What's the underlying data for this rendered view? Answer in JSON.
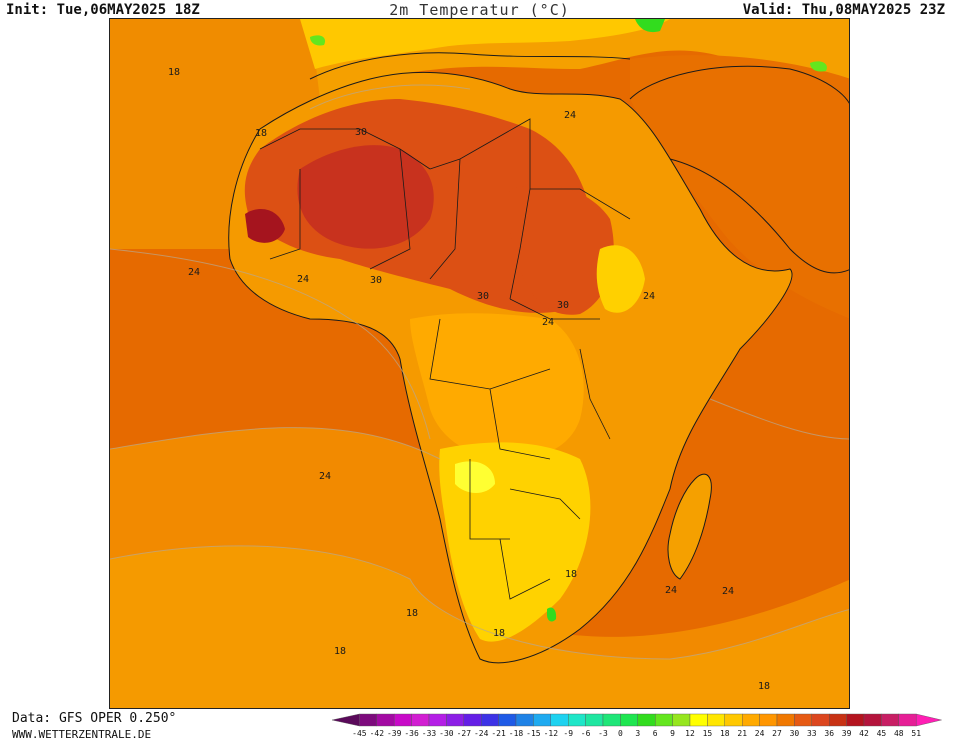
{
  "header": {
    "init": "Init: Tue,06MAY2025 18Z",
    "title": "2m Temperatur (°C)",
    "valid": "Valid: Thu,08MAY2025 23Z"
  },
  "footer": {
    "data_source": "Data: GFS OPER 0.250°",
    "website": "WWW.WETTERZENTRALE.DE"
  },
  "map": {
    "contour_labels": [
      {
        "id": "lbl-18-nw",
        "text": "18"
      },
      {
        "id": "lbl-18-mor",
        "text": "18"
      },
      {
        "id": "lbl-30-sah",
        "text": "30"
      },
      {
        "id": "lbl-24-egy",
        "text": "24"
      },
      {
        "id": "lbl-24-wafr",
        "text": "24"
      },
      {
        "id": "lbl-24-gui1",
        "text": "24"
      },
      {
        "id": "lbl-30-gui",
        "text": "30"
      },
      {
        "id": "lbl-30-chad",
        "text": "30"
      },
      {
        "id": "lbl-30-sud",
        "text": "30"
      },
      {
        "id": "lbl-24-cafr",
        "text": "24"
      },
      {
        "id": "lbl-24-eth",
        "text": "24"
      },
      {
        "id": "lbl-24-atl",
        "text": "24"
      },
      {
        "id": "lbl-18-moz",
        "text": "18"
      },
      {
        "id": "lbl-18-satl",
        "text": "18"
      },
      {
        "id": "lbl-18-sa",
        "text": "18"
      },
      {
        "id": "lbl-18-sw",
        "text": "18"
      },
      {
        "id": "lbl-24-mad1",
        "text": "24"
      },
      {
        "id": "lbl-24-mad2",
        "text": "24"
      },
      {
        "id": "lbl-18-se",
        "text": "18"
      }
    ]
  },
  "legend": {
    "ticks": [
      "-45",
      "-42",
      "-39",
      "-36",
      "-33",
      "-30",
      "-27",
      "-24",
      "-21",
      "-18",
      "-15",
      "-12",
      "-9",
      "-6",
      "-3",
      "0",
      "3",
      "6",
      "9",
      "12",
      "15",
      "18",
      "21",
      "24",
      "27",
      "30",
      "33",
      "36",
      "39",
      "42",
      "45",
      "48",
      "51"
    ],
    "colors": [
      "#5a0a5a",
      "#7d0a7d",
      "#a30aa3",
      "#c80ac8",
      "#d21ed2",
      "#b41ee6",
      "#8c1ee6",
      "#641ee6",
      "#3c32e6",
      "#1e5ae6",
      "#1e82e6",
      "#1eaaf0",
      "#1ed2f0",
      "#1ee6c8",
      "#1ee6a0",
      "#1ee678",
      "#1ee650",
      "#32dc1e",
      "#64e61e",
      "#96e61e",
      "#ffff00",
      "#ffe600",
      "#ffc800",
      "#ffaa00",
      "#ff9600",
      "#f07800",
      "#e65a14",
      "#dc461e",
      "#c83214",
      "#b4141e",
      "#b4143c",
      "#c81e64",
      "#e61e96",
      "#ff1eb4"
    ]
  }
}
